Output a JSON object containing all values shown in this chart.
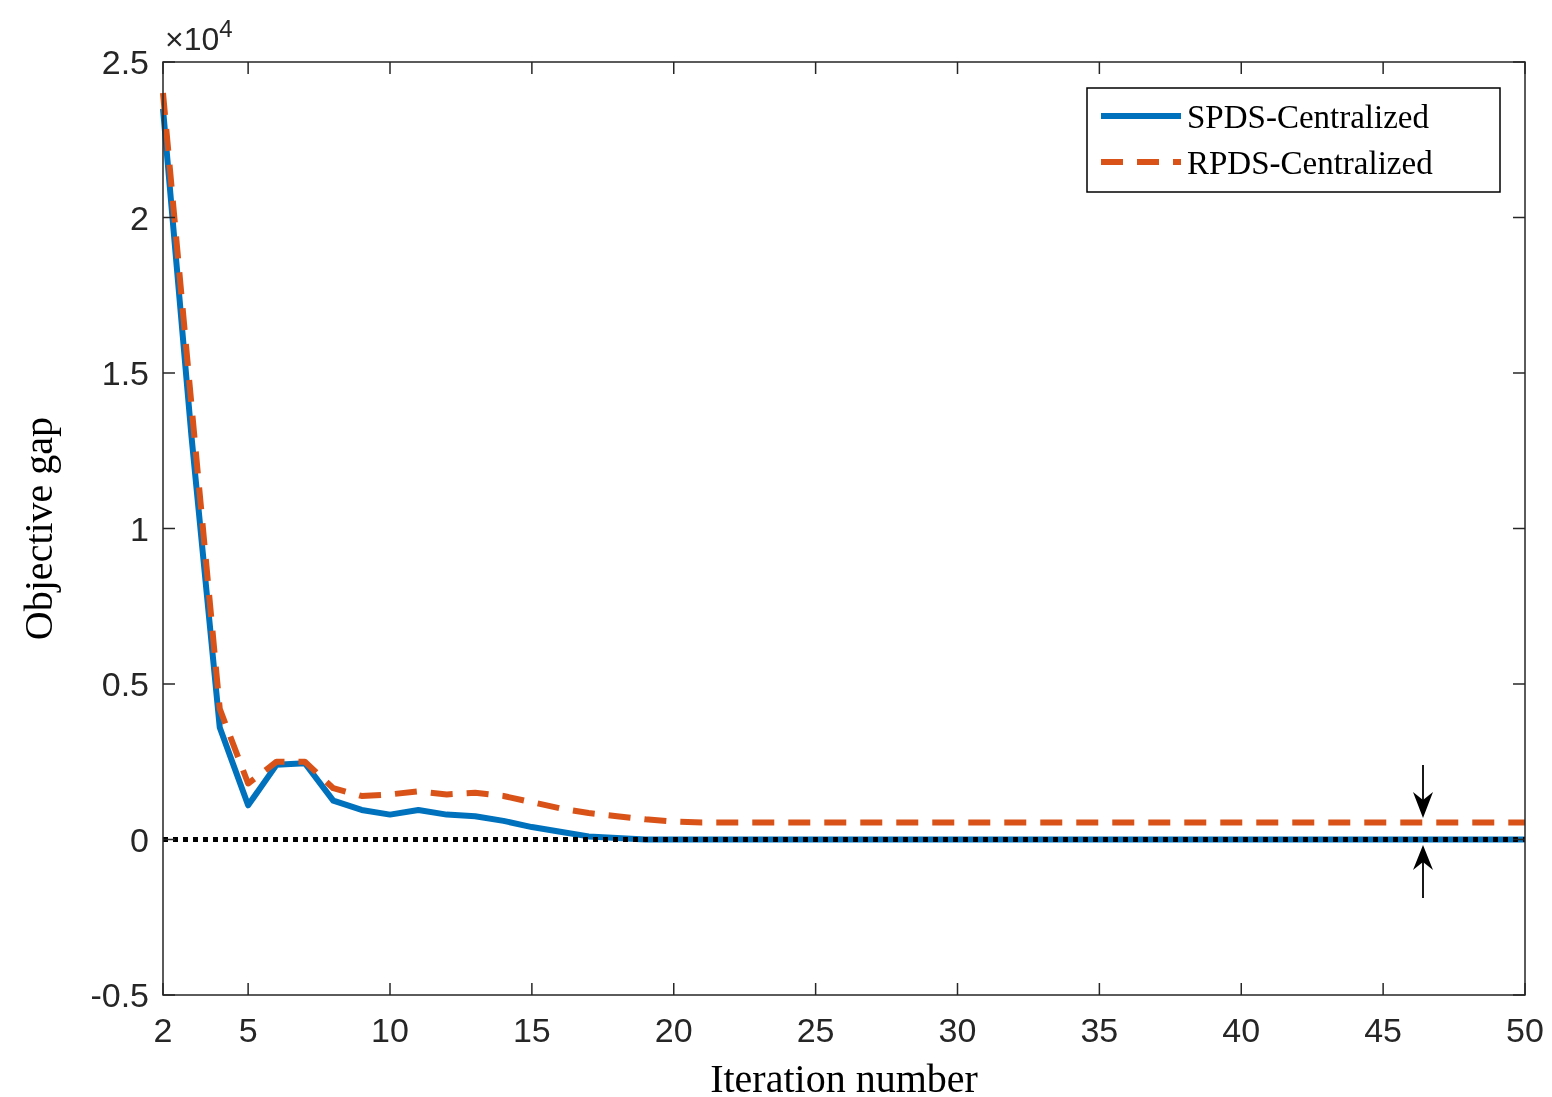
{
  "chart_data": {
    "type": "line",
    "xlabel": "Iteration number",
    "ylabel": "Objective gap",
    "annotations": [
      "×10$^{4}$"
    ],
    "x": [
      2,
      3,
      4,
      5,
      6,
      7,
      8,
      9,
      10,
      11,
      12,
      13,
      14,
      15,
      16,
      17,
      18,
      19,
      20,
      21,
      22,
      23,
      24,
      25,
      26,
      27,
      28,
      29,
      30,
      31,
      32,
      33,
      34,
      35,
      36,
      37,
      38,
      39,
      40,
      41,
      42,
      43,
      44,
      45,
      46,
      47,
      48,
      49,
      50
    ],
    "series": [
      {
        "name": "SPDS-Centralized",
        "color": "#0072bd",
        "line_style": "solid",
        "values": [
          2.35,
          1.3,
          0.36,
          0.11,
          0.24,
          0.245,
          0.125,
          0.095,
          0.08,
          0.095,
          0.08,
          0.075,
          0.06,
          0.04,
          0.025,
          0.01,
          0.005,
          0,
          0,
          0,
          0,
          0,
          0,
          0,
          0,
          0,
          0,
          0,
          0,
          0,
          0,
          0,
          0,
          0,
          0,
          0,
          0,
          0,
          0,
          0,
          0,
          0,
          0,
          0,
          0,
          0,
          0,
          0,
          0
        ]
      },
      {
        "name": "RPDS-Centralized",
        "color": "#d95319",
        "line_style": "dashed",
        "values": [
          2.4,
          1.4,
          0.42,
          0.18,
          0.25,
          0.25,
          0.165,
          0.14,
          0.145,
          0.155,
          0.145,
          0.15,
          0.14,
          0.12,
          0.1,
          0.085,
          0.075,
          0.065,
          0.058,
          0.055,
          0.055,
          0.055,
          0.055,
          0.055,
          0.055,
          0.055,
          0.055,
          0.055,
          0.055,
          0.055,
          0.055,
          0.055,
          0.055,
          0.055,
          0.055,
          0.055,
          0.055,
          0.055,
          0.055,
          0.055,
          0.055,
          0.055,
          0.055,
          0.055,
          0.055,
          0.055,
          0.055,
          0.055,
          0.055
        ]
      }
    ],
    "xlim": [
      2,
      50
    ],
    "xticks": [
      2,
      5,
      10,
      15,
      20,
      25,
      30,
      35,
      40,
      45,
      50
    ],
    "ylim": [
      -0.5,
      2.5
    ],
    "yticks": [
      -0.5,
      0,
      0.5,
      1,
      1.5,
      2,
      2.5
    ],
    "ref_lines": [
      {
        "axis": "y",
        "value": 0,
        "color": "#000000",
        "line_style": "dotted"
      }
    ],
    "grid": false,
    "legend": "top right"
  }
}
